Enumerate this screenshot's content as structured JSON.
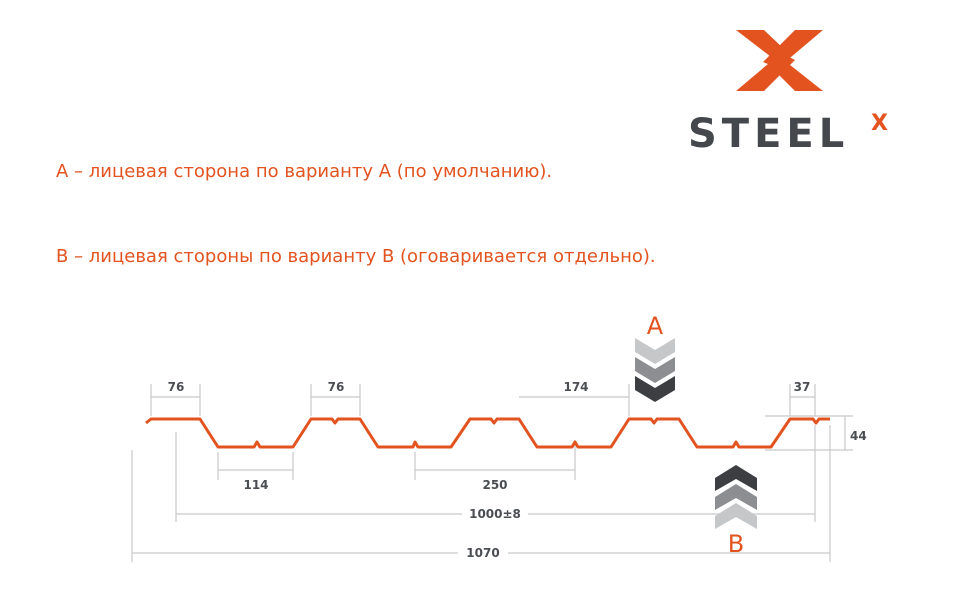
{
  "logo": {
    "text": "STEEL",
    "superscript": "X",
    "accent": "#e2531f",
    "dark": "#44474c"
  },
  "captions": {
    "a": "А – лицевая сторона по варианту А (по умолчанию).",
    "b": "В – лицевая стороны по варианту В (оговаривается отдельно)."
  },
  "diagram": {
    "profile_color": "#e2531f",
    "side_a": "A",
    "side_b": "B",
    "dimensions": {
      "top_flat_1": "76",
      "top_flat_2": "76",
      "rib_gap": "174",
      "edge": "37",
      "height": "44",
      "bottom_flat": "114",
      "pitch": "250",
      "working_width": "1000±8",
      "total_width": "1070"
    }
  }
}
